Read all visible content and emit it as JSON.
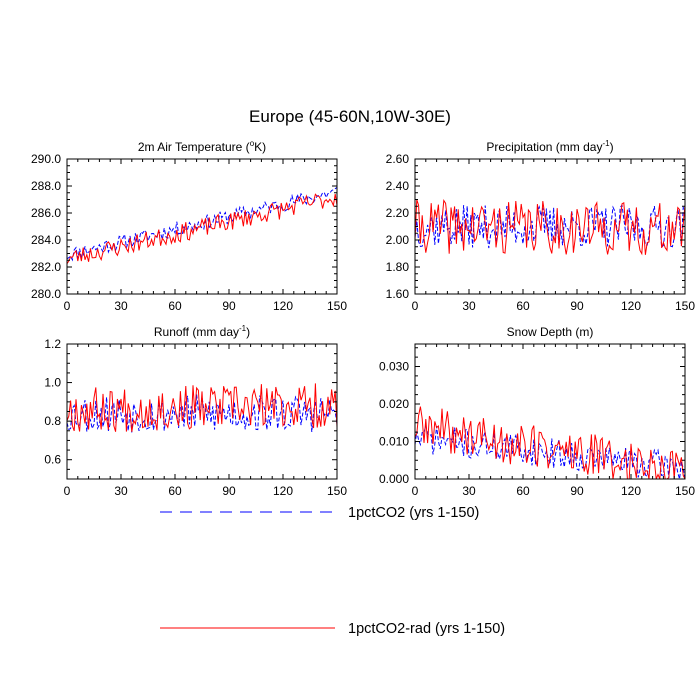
{
  "figure": {
    "title": "Europe (45-60N,10W-30E)"
  },
  "legend": {
    "placement": "bottom-center",
    "entries": [
      {
        "label": "1pctCO2 (yrs 1-150)",
        "color": "#0000ff",
        "style": "dashed"
      },
      {
        "label": "1pctCO2-rad (yrs 1-150)",
        "color": "#ff0000",
        "style": "solid"
      }
    ]
  },
  "chart_data": [
    {
      "type": "line",
      "title": "2m Air Temperature (°K)",
      "title_main": "2m Air Temperature (",
      "title_sup": "o",
      "title_tail": "K)",
      "xlabel": "",
      "ylabel": "",
      "xlim": [
        0,
        150
      ],
      "ylim": [
        280.0,
        290.0
      ],
      "xticks": [
        0,
        30,
        60,
        90,
        120,
        150
      ],
      "yticks": [
        280.0,
        282.0,
        284.0,
        286.0,
        288.0,
        290.0
      ],
      "ytick_labels": [
        "280.0",
        "282.0",
        "284.0",
        "286.0",
        "288.0",
        "290.0"
      ],
      "grid": false,
      "series_params": [
        {
          "name": "1pctCO2 (yrs 1-150)",
          "color": "#0000ff",
          "start": 282.9,
          "end": 287.6,
          "noise": 0.55,
          "seed": 11
        },
        {
          "name": "1pctCO2-rad (yrs 1-150)",
          "color": "#ff0000",
          "start": 282.6,
          "end": 287.2,
          "noise": 0.7,
          "seed": 23
        }
      ]
    },
    {
      "type": "line",
      "title": "Precipitation (mm day-1)",
      "title_main": "Precipitation (mm day",
      "title_sup": "-1",
      "title_tail": ")",
      "xlabel": "",
      "ylabel": "",
      "xlim": [
        0,
        150
      ],
      "ylim": [
        1.6,
        2.6
      ],
      "xticks": [
        0,
        30,
        60,
        90,
        120,
        150
      ],
      "yticks": [
        1.6,
        1.8,
        2.0,
        2.2,
        2.4,
        2.6
      ],
      "ytick_labels": [
        "1.60",
        "1.80",
        "2.00",
        "2.20",
        "2.40",
        "2.60"
      ],
      "grid": false,
      "series_params": [
        {
          "name": "1pctCO2 (yrs 1-150)",
          "color": "#0000ff",
          "start": 2.1,
          "end": 2.1,
          "noise": 0.16,
          "seed": 37
        },
        {
          "name": "1pctCO2-rad (yrs 1-150)",
          "color": "#ff0000",
          "start": 2.1,
          "end": 2.08,
          "noise": 0.2,
          "seed": 41
        }
      ]
    },
    {
      "type": "line",
      "title": "Runoff (mm day-1)",
      "title_main": "Runoff (mm day",
      "title_sup": "-1",
      "title_tail": ")",
      "xlabel": "",
      "ylabel": "",
      "xlim": [
        0,
        150
      ],
      "ylim": [
        0.5,
        1.2
      ],
      "xticks": [
        0,
        30,
        60,
        90,
        120,
        150
      ],
      "yticks": [
        0.6,
        0.8,
        1.0,
        1.2
      ],
      "ytick_labels": [
        "0.6",
        "0.8",
        "1.0",
        "1.2"
      ],
      "grid": false,
      "series_params": [
        {
          "name": "1pctCO2 (yrs 1-150)",
          "color": "#0000ff",
          "start": 0.84,
          "end": 0.84,
          "noise": 0.1,
          "seed": 53
        },
        {
          "name": "1pctCO2-rad (yrs 1-150)",
          "color": "#ff0000",
          "start": 0.86,
          "end": 0.88,
          "noise": 0.12,
          "seed": 67
        }
      ]
    },
    {
      "type": "line",
      "title": "Snow Depth (m)",
      "title_main": "Snow Depth (m)",
      "title_sup": "",
      "title_tail": "",
      "xlabel": "",
      "ylabel": "",
      "xlim": [
        0,
        150
      ],
      "ylim": [
        0.0,
        0.036
      ],
      "xticks": [
        0,
        30,
        60,
        90,
        120,
        150
      ],
      "yticks": [
        0.0,
        0.01,
        0.02,
        0.03
      ],
      "ytick_labels": [
        "0.000",
        "0.010",
        "0.020",
        "0.030"
      ],
      "grid": false,
      "series_params": [
        {
          "name": "1pctCO2 (yrs 1-150)",
          "color": "#0000ff",
          "start": 0.011,
          "end": 0.003,
          "noise": 0.004,
          "seed": 71,
          "nonneg": true
        },
        {
          "name": "1pctCO2-rad (yrs 1-150)",
          "color": "#ff0000",
          "start": 0.014,
          "end": 0.002,
          "noise": 0.006,
          "seed": 89,
          "nonneg": true
        }
      ]
    }
  ]
}
